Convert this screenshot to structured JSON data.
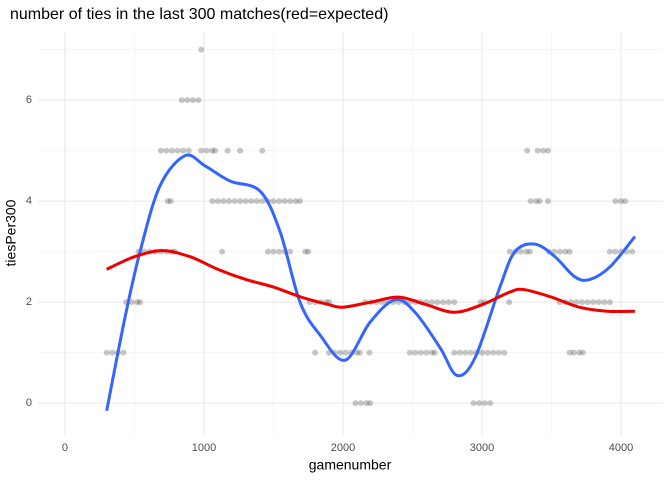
{
  "chart_data": {
    "type": "scatter",
    "title": "number of ties in the last 300 matches(red=expected)",
    "x_label": "gamenumber",
    "y_label": "tiesPer300",
    "xlim": [
      -194,
      4302
    ],
    "ylim": [
      -0.63,
      7.35
    ],
    "xticks": [
      0,
      1000,
      2000,
      3000,
      4000
    ],
    "yticks": [
      0,
      2,
      4,
      6
    ],
    "x_minor_ticks": [
      500,
      1500,
      2500,
      3500
    ],
    "y_minor_ticks": [
      1,
      3,
      5,
      7
    ],
    "grid": true,
    "point_color": "#444444",
    "x": [
      300,
      340,
      380,
      420,
      440,
      480,
      520,
      540,
      530,
      570,
      610,
      650,
      690,
      730,
      770,
      790,
      740,
      760,
      690,
      730,
      770,
      810,
      850,
      890,
      980,
      1020,
      1060,
      1080,
      1170,
      1260,
      1420,
      840,
      880,
      920,
      960,
      980,
      1060,
      1100,
      1140,
      1180,
      1220,
      1260,
      1300,
      1340,
      1380,
      1420,
      1460,
      1500,
      1540,
      1580,
      1620,
      1660,
      1690,
      1130,
      1460,
      1500,
      1540,
      1580,
      1620,
      1730,
      1750,
      1760,
      1800,
      1840,
      1880,
      1900,
      2160,
      2200,
      2240,
      2280,
      2320,
      2360,
      2400,
      2440,
      2480,
      2520,
      2560,
      2600,
      2640,
      2680,
      2720,
      2760,
      2800,
      1800,
      1900,
      1940,
      1980,
      2020,
      2060,
      2100,
      2120,
      2190,
      2480,
      2520,
      2560,
      2600,
      2640,
      2660,
      2800,
      2840,
      2880,
      2920,
      2960,
      3000,
      3040,
      3080,
      3120,
      3160,
      2090,
      2130,
      2170,
      2195,
      2940,
      2980,
      3020,
      3060,
      2990,
      3020,
      3195,
      3200,
      3240,
      3280,
      3320,
      3345,
      3480,
      3520,
      3560,
      3600,
      3630,
      3920,
      3960,
      4000,
      4040,
      4080,
      3350,
      3390,
      3415,
      3475,
      3960,
      4000,
      4030,
      3325,
      3400,
      3440,
      3475,
      3560,
      3600,
      3640,
      3680,
      3720,
      3760,
      3800,
      3840,
      3880,
      3920,
      3630,
      3660,
      3700,
      3725
    ],
    "y": [
      1,
      1,
      1,
      1,
      2,
      2,
      2,
      2,
      3,
      3,
      3,
      3,
      3,
      3,
      3,
      3,
      4,
      4,
      5,
      5,
      5,
      5,
      5,
      5,
      5,
      5,
      5,
      5,
      5,
      5,
      5,
      6,
      6,
      6,
      6,
      7,
      4,
      4,
      4,
      4,
      4,
      4,
      4,
      4,
      4,
      4,
      4,
      4,
      4,
      4,
      4,
      4,
      4,
      3,
      3,
      3,
      3,
      3,
      3,
      3,
      3,
      2,
      2,
      2,
      2,
      2,
      2,
      2,
      2,
      2,
      2,
      2,
      2,
      2,
      2,
      2,
      2,
      2,
      2,
      2,
      2,
      2,
      2,
      1,
      1,
      1,
      1,
      1,
      1,
      1,
      1,
      1,
      1,
      1,
      1,
      1,
      1,
      1,
      1,
      1,
      1,
      1,
      1,
      1,
      1,
      1,
      1,
      1,
      0,
      0,
      0,
      0,
      0,
      0,
      0,
      0,
      2,
      2,
      2,
      3,
      3,
      3,
      3,
      3,
      3,
      3,
      3,
      3,
      3,
      3,
      3,
      3,
      3,
      3,
      4,
      4,
      4,
      4,
      4,
      4,
      4,
      5,
      5,
      5,
      5,
      2,
      2,
      2,
      2,
      2,
      2,
      2,
      2,
      2,
      2,
      1,
      1,
      1,
      1
    ],
    "lines": [
      {
        "color": "#3366FF",
        "x": [
          300,
          432,
          540,
          683,
          863,
          1007,
          1187,
          1403,
          1547,
          1691,
          1835,
          2014,
          2194,
          2374,
          2518,
          2698,
          2820,
          2950,
          3129,
          3237,
          3381,
          3525,
          3669,
          3777,
          3921,
          4100
        ],
        "values": [
          -0.15,
          1.7,
          3.0,
          4.3,
          4.9,
          4.7,
          4.4,
          4.2,
          3.4,
          2.0,
          1.35,
          0.85,
          1.6,
          2.05,
          1.8,
          1.1,
          0.55,
          0.9,
          2.3,
          3.0,
          3.15,
          2.9,
          2.5,
          2.45,
          2.7,
          3.3
        ]
      },
      {
        "color": "#EE0000",
        "x": [
          300,
          500,
          700,
          900,
          1100,
          1300,
          1500,
          1700,
          1900,
          2000,
          2200,
          2400,
          2600,
          2800,
          3000,
          3200,
          3300,
          3500,
          3700,
          3900,
          4100
        ],
        "values": [
          2.65,
          2.9,
          3.02,
          2.9,
          2.65,
          2.45,
          2.3,
          2.1,
          1.95,
          1.9,
          2.0,
          2.1,
          1.95,
          1.8,
          1.95,
          2.2,
          2.25,
          2.1,
          1.9,
          1.82,
          1.82
        ]
      }
    ]
  }
}
